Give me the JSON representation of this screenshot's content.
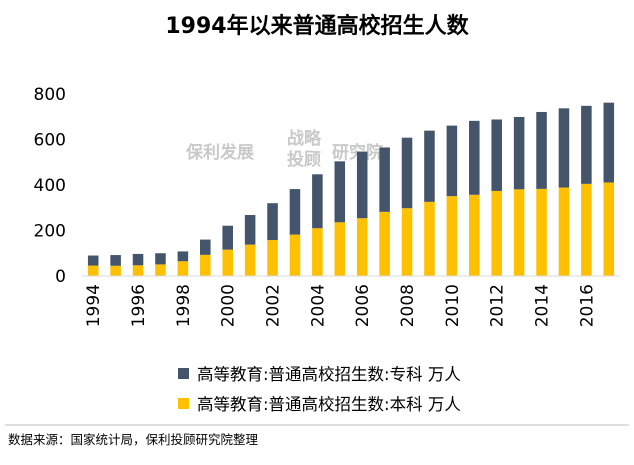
{
  "chart_data": {
    "type": "bar",
    "stacked": true,
    "title": "1994年以来普通高校招生人数",
    "categories": [
      "1994",
      "1995",
      "1996",
      "1997",
      "1998",
      "1999",
      "2000",
      "2001",
      "2002",
      "2003",
      "2004",
      "2005",
      "2006",
      "2007",
      "2008",
      "2009",
      "2010",
      "2011",
      "2012",
      "2013",
      "2014",
      "2015",
      "2016",
      "2017"
    ],
    "x_tick_labels": [
      "1994",
      "1996",
      "1998",
      "2000",
      "2002",
      "2004",
      "2006",
      "2008",
      "2010",
      "2012",
      "2014",
      "2016"
    ],
    "series": [
      {
        "name": "高等教育:普通高校招生数:本科 万人",
        "color": "#ffc000",
        "values": [
          46,
          45,
          47,
          51,
          65,
          93,
          116,
          138,
          158,
          182,
          210,
          236,
          254,
          282,
          298,
          326,
          351,
          357,
          374,
          381,
          383,
          389,
          405,
          411
        ]
      },
      {
        "name": "高等教育:普通高校招生数:专科 万人",
        "color": "#44546a",
        "values": [
          44,
          47,
          50,
          49,
          43,
          67,
          105,
          130,
          162,
          200,
          237,
          268,
          293,
          283,
          310,
          313,
          310,
          325,
          314,
          318,
          338,
          348,
          343,
          351
        ]
      }
    ],
    "ylim": [
      0,
      800
    ],
    "yticks": [
      0,
      200,
      400,
      600,
      800
    ],
    "legend_position": "bottom",
    "grid": false
  },
  "watermark": {
    "left": "保利发展",
    "middle_top": "战略",
    "middle_bottom": "投顾",
    "right": "研究院"
  },
  "source_note": "数据来源：国家统计局，保利投顾研究院整理"
}
